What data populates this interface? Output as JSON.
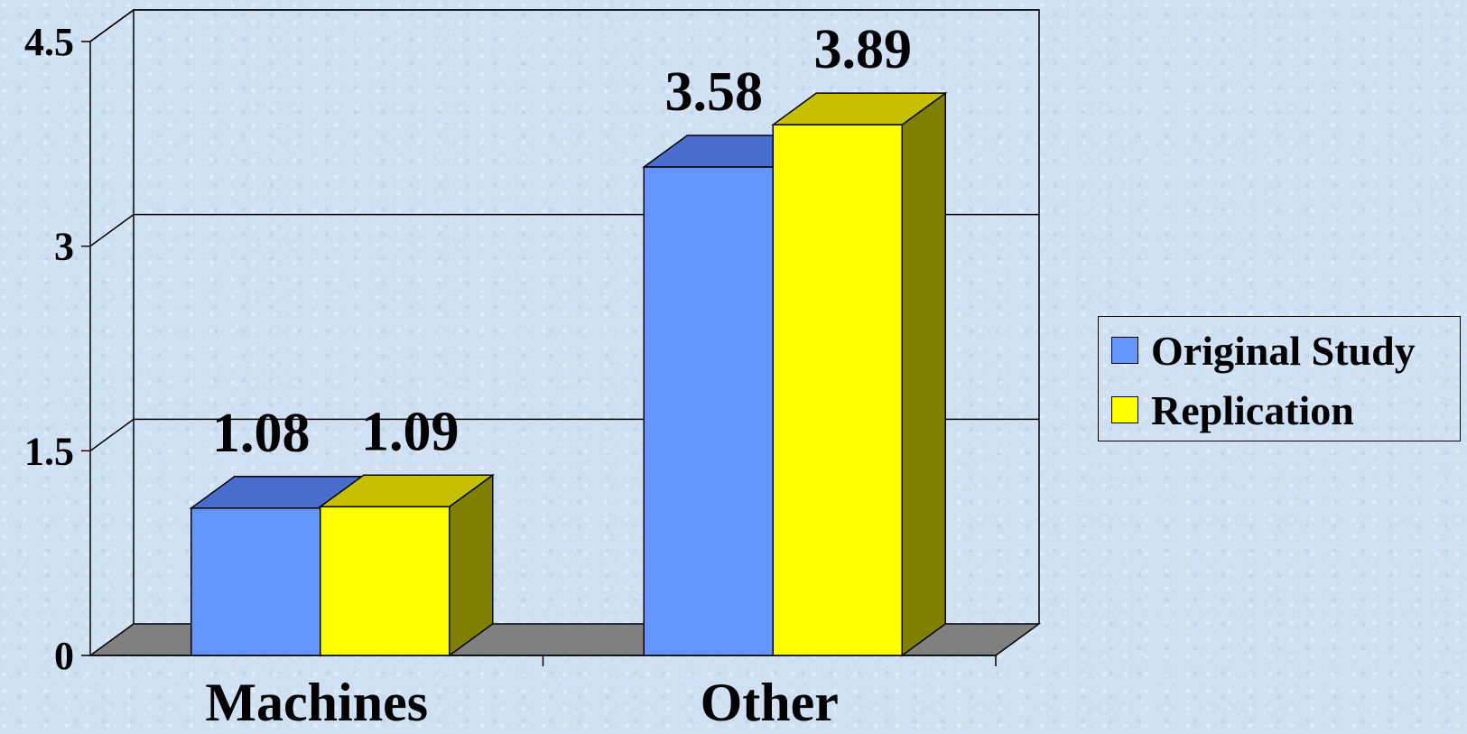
{
  "chart_data": {
    "type": "bar",
    "categories": [
      "Machines",
      "Other"
    ],
    "series": [
      {
        "name": "Original Study",
        "values": [
          1.08,
          3.58
        ],
        "labels": [
          "1.08",
          "3.58"
        ],
        "color": "#6495fa"
      },
      {
        "name": "Replication",
        "values": [
          1.09,
          3.89
        ],
        "labels": [
          "1.09",
          "3.89"
        ],
        "color": "#ffff00"
      }
    ],
    "yticks": [
      "0",
      "1.5",
      "3",
      "4.5"
    ],
    "ylim": [
      0,
      4.5
    ],
    "grid": true,
    "legend": "right",
    "style": "3d",
    "colors": {
      "floor": "#808080",
      "series_top": [
        "#4a6ccc",
        "#c6c000"
      ],
      "series_side": [
        "#3a58a8",
        "#808000"
      ]
    }
  }
}
